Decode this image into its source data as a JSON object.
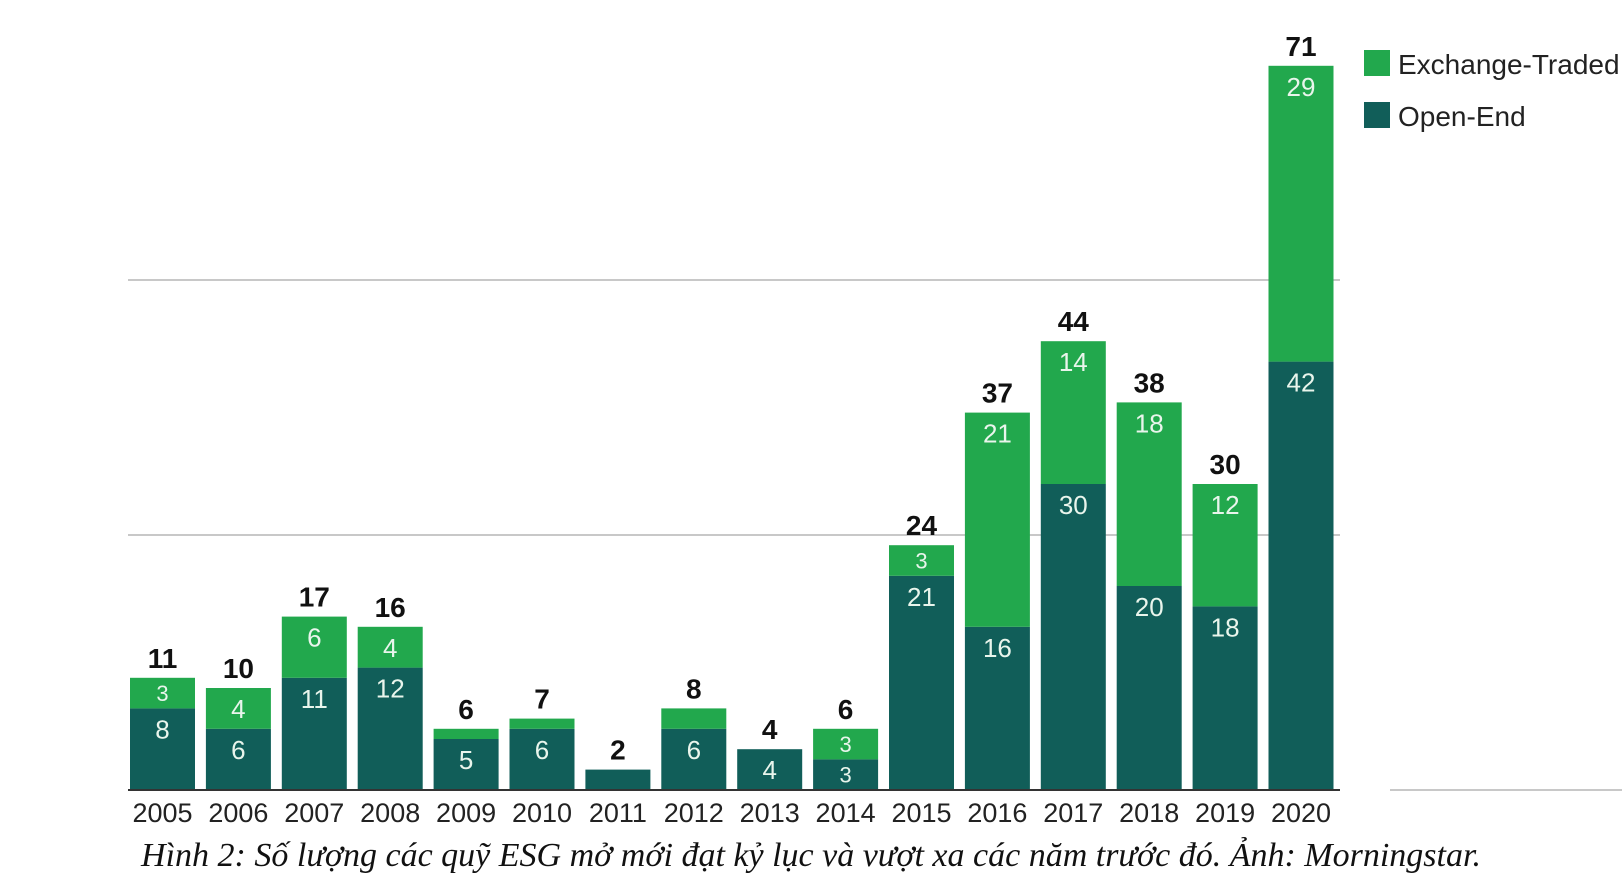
{
  "chart_data": {
    "type": "bar",
    "stacked": true,
    "categories": [
      "2005",
      "2006",
      "2007",
      "2008",
      "2009",
      "2010",
      "2011",
      "2012",
      "2013",
      "2014",
      "2015",
      "2016",
      "2017",
      "2018",
      "2019",
      "2020"
    ],
    "series": [
      {
        "name": "Open-End",
        "color": "#115e59",
        "values": [
          8,
          6,
          11,
          12,
          5,
          6,
          2,
          6,
          4,
          3,
          21,
          16,
          30,
          20,
          18,
          42
        ],
        "labels": [
          "8",
          "6",
          "11",
          "12",
          "5",
          "6",
          "",
          "6",
          "4",
          "3",
          "21",
          "16",
          "30",
          "20",
          "18",
          "42"
        ]
      },
      {
        "name": "Exchange-Traded",
        "color": "#22a84d",
        "values": [
          3,
          4,
          6,
          4,
          1,
          1,
          0,
          2,
          0,
          3,
          3,
          21,
          14,
          18,
          12,
          29
        ],
        "labels": [
          "3",
          "4",
          "6",
          "4",
          "",
          "",
          "",
          "",
          "",
          "3",
          "3",
          "21",
          "14",
          "18",
          "12",
          "29"
        ]
      }
    ],
    "totals": [
      "11",
      "10",
      "17",
      "16",
      "6",
      "7",
      "2",
      "8",
      "4",
      "6",
      "24",
      "37",
      "44",
      "38",
      "30",
      "71"
    ],
    "legend": [
      {
        "name": "Exchange-Traded",
        "color": "#22a84d"
      },
      {
        "name": "Open-End",
        "color": "#115e59"
      }
    ],
    "ylim": [
      0,
      75
    ],
    "gridlines": [
      25,
      50
    ],
    "legend_position": "top-right"
  },
  "caption": "Hình 2: Số lượng các quỹ ESG mở mới đạt kỷ lục và vượt xa các năm trước đó. Ảnh: Morningstar."
}
